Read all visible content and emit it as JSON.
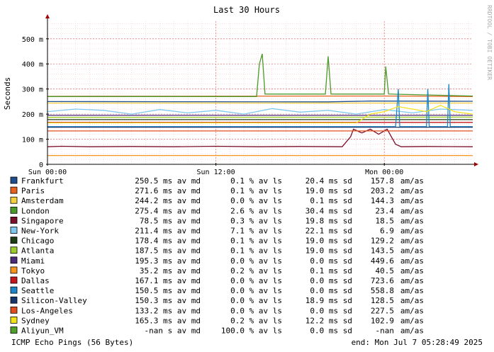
{
  "chart_data": {
    "type": "line",
    "title": "Last 30 Hours",
    "ylabel": "Seconds",
    "ylim": [
      0,
      570
    ],
    "y_ticks": [
      {
        "value": 0,
        "label": "0"
      },
      {
        "value": 100,
        "label": "100 m"
      },
      {
        "value": 200,
        "label": "200 m"
      },
      {
        "value": 300,
        "label": "300 m"
      },
      {
        "value": 400,
        "label": "400 m"
      },
      {
        "value": 500,
        "label": "500 m"
      }
    ],
    "x_ticks": [
      {
        "hour": 0,
        "label": "Sun 00:00"
      },
      {
        "hour": 12,
        "label": "Sun 12:00"
      },
      {
        "hour": 24,
        "label": "Mon 00:00"
      }
    ],
    "x_range_hours": [
      0,
      30.3
    ],
    "grid": true,
    "side_label": "RRDTOOL / TOBI OETIKER",
    "series": [
      {
        "name": "Frankfurt",
        "color": "#1f4e8c",
        "avg": "250.5 ms av md",
        "loss": "0.1 % av ls",
        "sd": "20.4 ms sd",
        "amas": "157.8",
        "level": 250.5,
        "points": [
          [
            0,
            250
          ],
          [
            20,
            249
          ],
          [
            23,
            252
          ],
          [
            30.3,
            251
          ]
        ]
      },
      {
        "name": "Paris",
        "color": "#e8601c",
        "avg": "271.6 ms av md",
        "loss": "0.1 % av ls",
        "sd": "19.0 ms sd",
        "amas": "203.2",
        "level": 271.6,
        "points": [
          [
            0,
            271
          ],
          [
            25,
            272
          ],
          [
            30.3,
            270
          ]
        ]
      },
      {
        "name": "Amsterdam",
        "color": "#f4d03f",
        "avg": "244.2 ms av md",
        "loss": "0.0 % av ls",
        "sd": "0.1 ms sd",
        "amas": "144.3",
        "level": 244.2,
        "points": [
          [
            0,
            244
          ],
          [
            30.3,
            244
          ]
        ]
      },
      {
        "name": "London",
        "color": "#4a9a2a",
        "avg": "275.4 ms av md",
        "loss": "2.6 % av ls",
        "sd": "30.4 ms sd",
        "amas": "23.4",
        "level": 275.4,
        "points": [
          [
            0,
            270
          ],
          [
            14.9,
            270
          ],
          [
            15.1,
            400
          ],
          [
            15.3,
            440
          ],
          [
            15.5,
            280
          ],
          [
            17,
            280
          ],
          [
            19.8,
            280
          ],
          [
            20,
            430
          ],
          [
            20.2,
            280
          ],
          [
            24,
            280
          ],
          [
            24.1,
            390
          ],
          [
            24.3,
            280
          ],
          [
            30.3,
            272
          ]
        ]
      },
      {
        "name": "Singapore",
        "color": "#7b0f2a",
        "avg": "78.5 ms av md",
        "loss": "0.3 % av ls",
        "sd": "19.8 ms sd",
        "amas": "18.5",
        "level": 78.5,
        "points": [
          [
            0,
            70
          ],
          [
            1,
            72
          ],
          [
            3,
            70
          ],
          [
            6,
            71
          ],
          [
            9,
            70
          ],
          [
            12,
            72
          ],
          [
            15,
            70
          ],
          [
            18,
            71
          ],
          [
            21,
            70
          ],
          [
            21.6,
            110
          ],
          [
            21.8,
            140
          ],
          [
            22.4,
            125
          ],
          [
            23.0,
            140
          ],
          [
            23.6,
            120
          ],
          [
            24.2,
            140
          ],
          [
            24.8,
            80
          ],
          [
            25.2,
            70
          ],
          [
            27,
            71
          ],
          [
            30.3,
            70
          ]
        ]
      },
      {
        "name": "New-York",
        "color": "#7ec8f0",
        "avg": "211.4 ms av md",
        "loss": "7.1 % av ls",
        "sd": "22.1 ms sd",
        "amas": "6.9",
        "level": 211.4,
        "points": [
          [
            0,
            210
          ],
          [
            2,
            220
          ],
          [
            4,
            215
          ],
          [
            6,
            200
          ],
          [
            8,
            218
          ],
          [
            10,
            205
          ],
          [
            12,
            215
          ],
          [
            14,
            200
          ],
          [
            16,
            222
          ],
          [
            18,
            208
          ],
          [
            20,
            215
          ],
          [
            22,
            200
          ],
          [
            24,
            218
          ],
          [
            26,
            205
          ],
          [
            28,
            220
          ],
          [
            30.3,
            215
          ]
        ]
      },
      {
        "name": "Chicago",
        "color": "#1e3d14",
        "avg": "178.4 ms av md",
        "loss": "0.1 % av ls",
        "sd": "19.0 ms sd",
        "amas": "129.2",
        "level": 178.4,
        "points": [
          [
            0,
            178
          ],
          [
            30.3,
            178
          ]
        ]
      },
      {
        "name": "Atlanta",
        "color": "#9ccc2a",
        "avg": "187.5 ms av md",
        "loss": "0.1 % av ls",
        "sd": "19.0 ms sd",
        "amas": "143.5",
        "level": 187.5,
        "points": [
          [
            0,
            187
          ],
          [
            30.3,
            188
          ]
        ]
      },
      {
        "name": "Miami",
        "color": "#4b2a7a",
        "avg": "195.3 ms av md",
        "loss": "0.0 % av ls",
        "sd": "0.0 ms sd",
        "amas": "449.6",
        "level": 195.3,
        "points": [
          [
            0,
            195
          ],
          [
            30.3,
            195
          ]
        ]
      },
      {
        "name": "Tokyo",
        "color": "#f7941d",
        "avg": "35.2 ms av md",
        "loss": "0.2 % av ls",
        "sd": "0.1 ms sd",
        "amas": "40.5",
        "level": 35.2,
        "points": [
          [
            0,
            35
          ],
          [
            30.3,
            35
          ]
        ]
      },
      {
        "name": "Dallas",
        "color": "#c4161c",
        "avg": "167.1 ms av md",
        "loss": "0.0 % av ls",
        "sd": "0.0 ms sd",
        "amas": "723.6",
        "level": 167.1,
        "points": [
          [
            0,
            167
          ],
          [
            30.3,
            167
          ]
        ]
      },
      {
        "name": "Seattle",
        "color": "#1a86c8",
        "avg": "150.5 ms av md",
        "loss": "0.0 % av ls",
        "sd": "0.0 ms sd",
        "amas": "558.8",
        "level": 150.5,
        "points": [
          [
            0,
            150
          ],
          [
            24.8,
            150
          ],
          [
            25,
            300
          ],
          [
            25.1,
            150
          ],
          [
            27,
            150
          ],
          [
            27.1,
            300
          ],
          [
            27.2,
            150
          ],
          [
            28.5,
            150
          ],
          [
            28.6,
            320
          ],
          [
            28.7,
            150
          ],
          [
            30.3,
            150
          ]
        ]
      },
      {
        "name": "Silicon-Valley",
        "color": "#14366b",
        "avg": "150.3 ms av md",
        "loss": "0.0 % av ls",
        "sd": "18.9 ms sd",
        "amas": "128.5",
        "level": 150.3,
        "points": [
          [
            0,
            148
          ],
          [
            30.3,
            148
          ]
        ]
      },
      {
        "name": "Los-Angeles",
        "color": "#e04e1f",
        "avg": "133.2 ms av md",
        "loss": "0.0 % av ls",
        "sd": "0.0 ms sd",
        "amas": "227.5",
        "level": 133.2,
        "points": [
          [
            0,
            133
          ],
          [
            30.3,
            133
          ]
        ]
      },
      {
        "name": "Sydney",
        "color": "#f2e21a",
        "avg": "165.3 ms av md",
        "loss": "0.2 % av ls",
        "sd": "12.2 ms sd",
        "amas": "102.9",
        "level": 165.3,
        "points": [
          [
            0,
            165
          ],
          [
            22,
            165
          ],
          [
            23,
            200
          ],
          [
            24,
            210
          ],
          [
            25,
            230
          ],
          [
            26,
            220
          ],
          [
            27,
            210
          ],
          [
            28,
            235
          ],
          [
            29,
            210
          ],
          [
            30.3,
            200
          ]
        ]
      },
      {
        "name": "Aliyun_VM",
        "color": "#4da02a",
        "avg": "-nan  s av md",
        "loss": "100.0 % av ls",
        "sd": "0.0 ms sd",
        "amas": "-nan",
        "level": null,
        "points": []
      }
    ],
    "unit_label": "am/as",
    "footer_left": "ICMP Echo Pings (56 Bytes)",
    "footer_right": "end: Mon Jul  7 05:28:49 2025"
  }
}
